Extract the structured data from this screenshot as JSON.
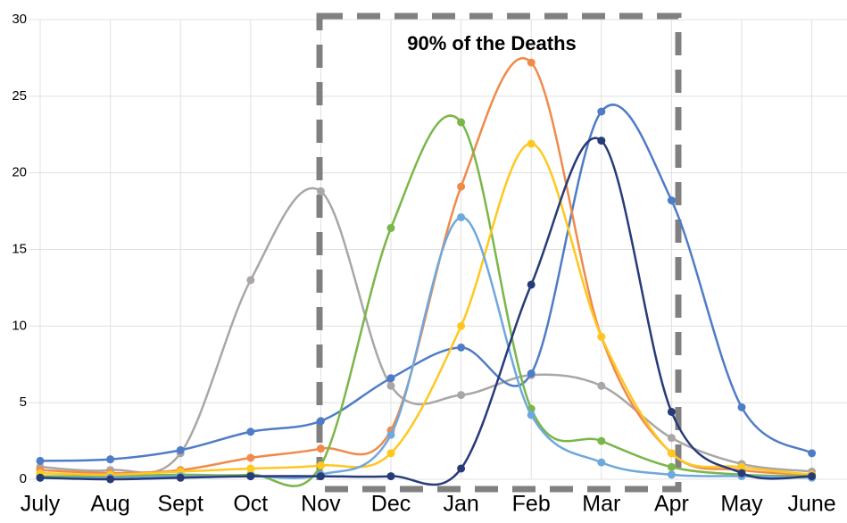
{
  "chart_data": {
    "type": "line",
    "annotation": "90% of the Deaths",
    "categories": [
      "July",
      "Aug",
      "Sept",
      "Oct",
      "Nov",
      "Dec",
      "Jan",
      "Feb",
      "Mar",
      "Apr",
      "May",
      "June"
    ],
    "series": [
      {
        "color": "#aaa6a6",
        "values": [
          0.8,
          0.6,
          1.7,
          13.0,
          18.8,
          6.1,
          5.5,
          6.8,
          6.1,
          2.7,
          1.0,
          0.5
        ]
      },
      {
        "color": "#4f7cc6",
        "values": [
          1.2,
          1.3,
          1.9,
          3.1,
          3.8,
          6.6,
          8.6,
          6.9,
          24.0,
          18.2,
          4.7,
          1.7
        ]
      },
      {
        "color": "#f08a4b",
        "values": [
          0.6,
          0.4,
          0.6,
          1.4,
          2.0,
          3.2,
          19.1,
          27.2,
          9.3,
          1.7,
          0.6,
          0.3
        ]
      },
      {
        "color": "#7ab648",
        "values": [
          0.2,
          0.2,
          0.3,
          0.3,
          0.9,
          16.4,
          23.3,
          4.6,
          2.5,
          0.8,
          0.3,
          0.2
        ]
      },
      {
        "color": "#ffc720",
        "values": [
          0.4,
          0.3,
          0.5,
          0.7,
          0.9,
          1.7,
          10.0,
          21.9,
          9.3,
          1.7,
          0.8,
          0.3
        ]
      },
      {
        "color": "#6fa8dc",
        "values": [
          0.1,
          0.1,
          0.2,
          0.2,
          0.3,
          2.9,
          17.1,
          4.2,
          1.1,
          0.3,
          0.2,
          0.1
        ]
      },
      {
        "color": "#263b78",
        "values": [
          0.1,
          0,
          0.1,
          0.2,
          0.2,
          0.2,
          0.7,
          12.7,
          22.1,
          4.4,
          0.4,
          0.2
        ]
      }
    ],
    "ylim": [
      0,
      30
    ],
    "yticks": [
      0,
      5,
      10,
      15,
      20,
      25,
      30
    ],
    "grid": true
  }
}
